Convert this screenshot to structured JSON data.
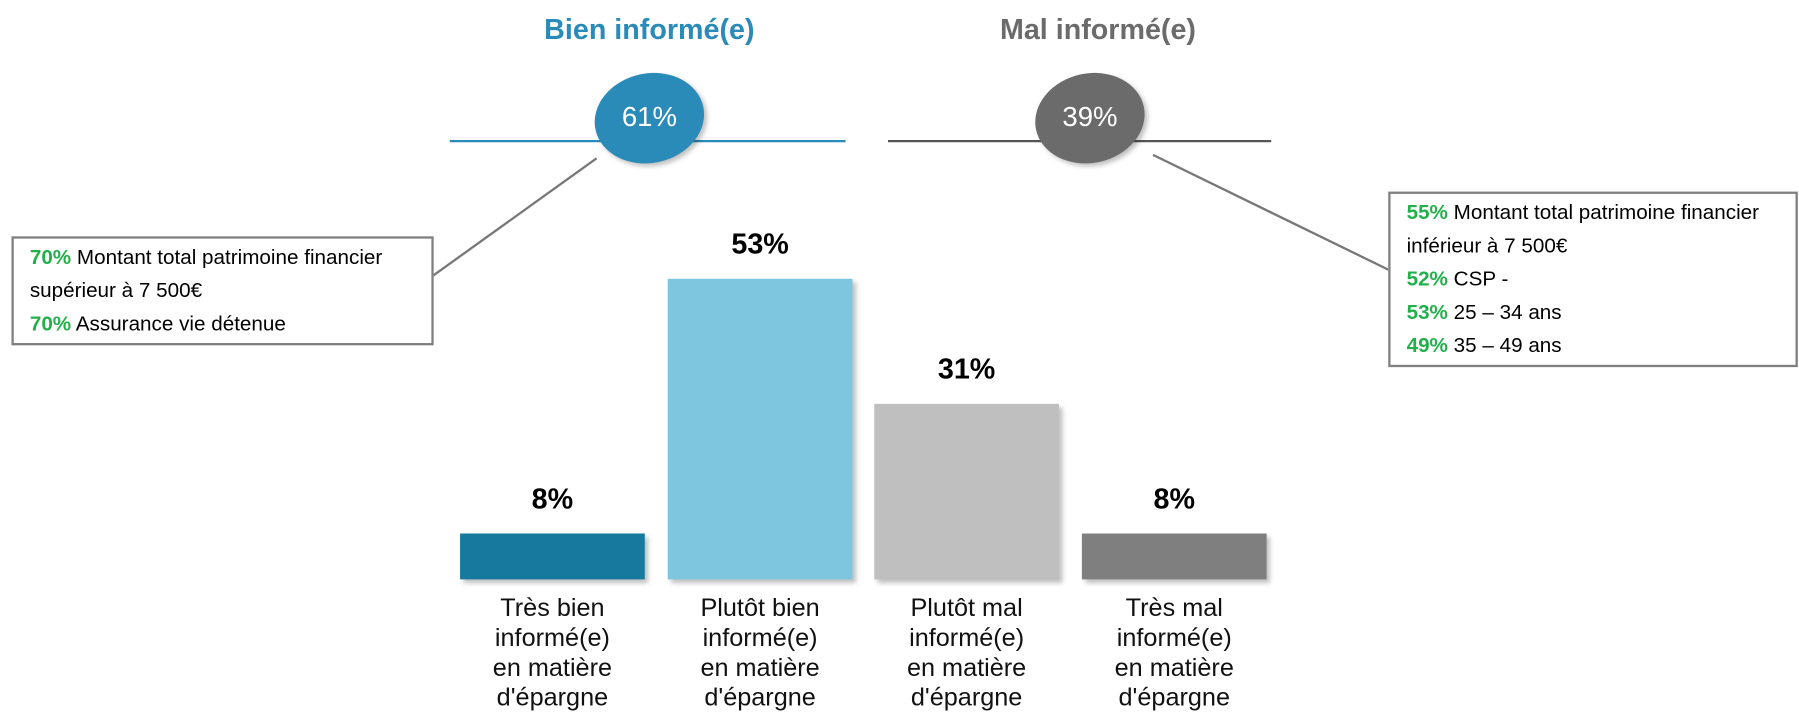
{
  "chart_data": {
    "type": "bar",
    "categories": [
      "Très bien informé(e) en matière d'épargne",
      "Plutôt bien informé(e) en matière d'épargne",
      "Plutôt mal informé(e) en matière d'épargne",
      "Très mal informé(e) en matière d'épargne"
    ],
    "values": [
      8,
      53,
      31,
      8
    ],
    "value_labels": [
      "8%",
      "53%",
      "31%",
      "8%"
    ],
    "colors": [
      "#17799e",
      "#7ec6e0",
      "#bfbfbf",
      "#7f7f7f"
    ],
    "groups": [
      {
        "name": "Bien informé(e)",
        "color": "#2a8ab8",
        "value": 61,
        "value_label": "61%"
      },
      {
        "name": "Mal informé(e)",
        "color": "#6b6b6b",
        "value": 39,
        "value_label": "39%"
      }
    ],
    "callouts": [
      {
        "items": [
          {
            "value": 70,
            "label": "70%",
            "text": "Montant total patrimoine financier supérieur à 7 500€"
          },
          {
            "value": 70,
            "label": "70%",
            "text": "Assurance vie détenue"
          }
        ]
      },
      {
        "items": [
          {
            "value": 55,
            "label": "55%",
            "text": "Montant total patrimoine financier inférieur à 7 500€"
          },
          {
            "value": 52,
            "label": "52%",
            "text": "CSP -"
          },
          {
            "value": 53,
            "label": "53%",
            "text": "25 – 34 ans"
          },
          {
            "value": 49,
            "label": "49%",
            "text": "35 – 49 ans"
          }
        ]
      }
    ]
  }
}
